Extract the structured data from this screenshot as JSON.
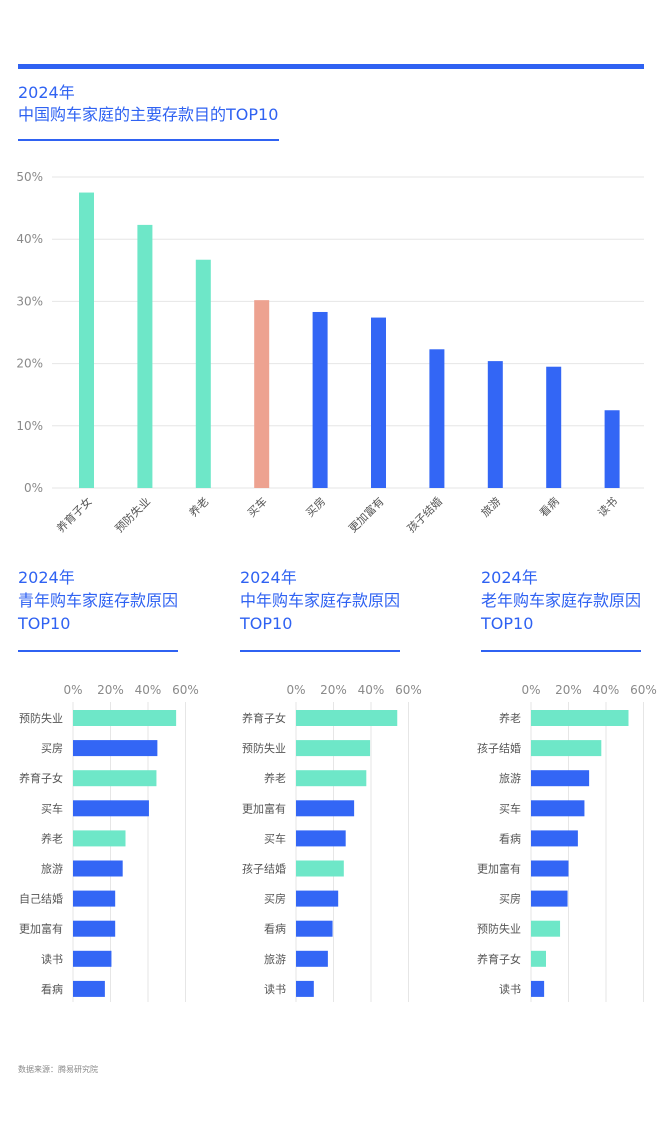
{
  "colors": {
    "accent": "#2f62f2",
    "green": "#6ee7c8",
    "blue": "#3366f5",
    "salmon": "#eda290",
    "grid": "#e6e6e6",
    "tick": "#8a8a8a"
  },
  "main": {
    "title_line1": "2024年",
    "title_line2": "中国购车家庭的主要存款目的TOP10"
  },
  "panels": [
    {
      "title_line1": "2024年",
      "title_line2": "青年购车家庭存款原因",
      "title_line3": "TOP10"
    },
    {
      "title_line1": "2024年",
      "title_line2": "中年购车家庭存款原因",
      "title_line3": "TOP10"
    },
    {
      "title_line1": "2024年",
      "title_line2": "老年购车家庭存款原因",
      "title_line3": "TOP10"
    }
  ],
  "source": "数据来源：腾易研究院",
  "chart_data": [
    {
      "type": "bar",
      "title": "2024年 中国购车家庭的主要存款目的TOP10",
      "categories": [
        "养育子女",
        "预防失业",
        "养老",
        "买车",
        "买房",
        "更加富有",
        "孩子结婚",
        "旅游",
        "看病",
        "读书"
      ],
      "values": [
        47.5,
        42.3,
        36.7,
        30.2,
        28.3,
        27.4,
        22.3,
        20.4,
        19.5,
        12.5
      ],
      "colors": [
        "green",
        "green",
        "green",
        "salmon",
        "blue",
        "blue",
        "blue",
        "blue",
        "blue",
        "blue"
      ],
      "ylim": [
        0,
        50
      ],
      "yticks": [
        "0%",
        "10%",
        "20%",
        "30%",
        "40%",
        "50%"
      ]
    },
    {
      "type": "bar",
      "orientation": "horizontal",
      "title": "2024年 青年购车家庭存款原因 TOP10",
      "categories": [
        "预防失业",
        "买房",
        "养育子女",
        "买车",
        "养老",
        "旅游",
        "自己结婚",
        "更加富有",
        "读书",
        "看病"
      ],
      "values": [
        55,
        45,
        44.5,
        40.5,
        28,
        26.5,
        22.5,
        22.5,
        20.5,
        17
      ],
      "colors": [
        "green",
        "blue",
        "green",
        "blue",
        "green",
        "blue",
        "blue",
        "blue",
        "blue",
        "blue"
      ],
      "xlim": [
        0,
        60
      ],
      "xticks": [
        "0%",
        "20%",
        "40%",
        "60%"
      ]
    },
    {
      "type": "bar",
      "orientation": "horizontal",
      "title": "2024年 中年购车家庭存款原因 TOP10",
      "categories": [
        "养育子女",
        "预防失业",
        "养老",
        "更加富有",
        "买车",
        "孩子结婚",
        "买房",
        "看病",
        "旅游",
        "读书"
      ],
      "values": [
        54,
        39.5,
        37.5,
        31,
        26.5,
        25.5,
        22.5,
        19.5,
        17,
        9.5
      ],
      "colors": [
        "green",
        "green",
        "green",
        "blue",
        "blue",
        "green",
        "blue",
        "blue",
        "blue",
        "blue"
      ],
      "xlim": [
        0,
        60
      ],
      "xticks": [
        "0%",
        "20%",
        "40%",
        "60%"
      ]
    },
    {
      "type": "bar",
      "orientation": "horizontal",
      "title": "2024年 老年购车家庭存款原因 TOP10",
      "categories": [
        "养老",
        "孩子结婚",
        "旅游",
        "买车",
        "看病",
        "更加富有",
        "买房",
        "预防失业",
        "养育子女",
        "读书"
      ],
      "values": [
        52,
        37.5,
        31,
        28.5,
        25,
        20,
        19.5,
        15.5,
        8,
        7
      ],
      "colors": [
        "green",
        "green",
        "blue",
        "blue",
        "blue",
        "blue",
        "blue",
        "green",
        "green",
        "blue"
      ],
      "xlim": [
        0,
        60
      ],
      "xticks": [
        "0%",
        "20%",
        "40%",
        "60%"
      ]
    }
  ]
}
